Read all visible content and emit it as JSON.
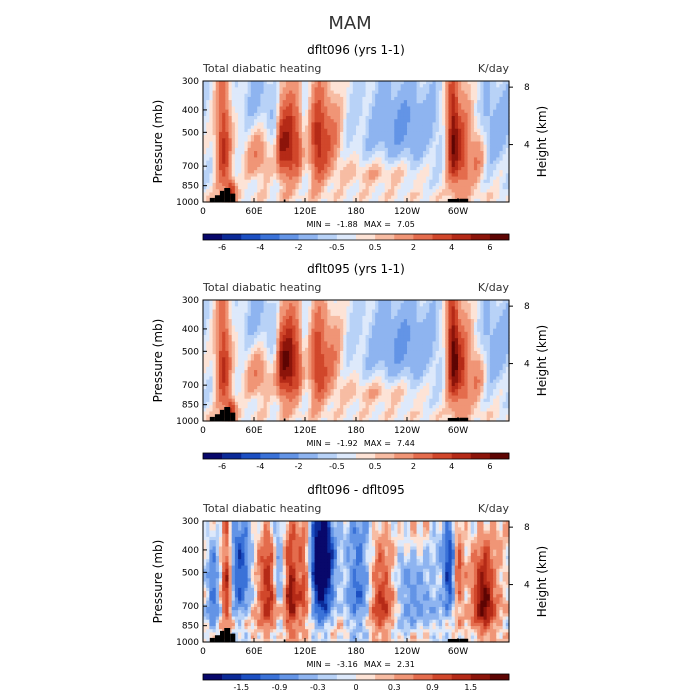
{
  "figure_title": "MAM",
  "chart_data": [
    {
      "type": "heatmap",
      "title": "dflt096 (yrs 1-1)",
      "left_label": "Total diabatic heating",
      "units": "K/day",
      "ylabel": "Pressure (mb)",
      "ylabel_right": "Height (km)",
      "x_ticks": [
        "0",
        "60E",
        "120E",
        "180",
        "120W",
        "60W"
      ],
      "x_tick_values": [
        0,
        60,
        120,
        180,
        240,
        300
      ],
      "xlim": [
        0,
        360
      ],
      "y_ticks": [
        "300",
        "400",
        "500",
        "700",
        "850",
        "1000"
      ],
      "y_tick_values": [
        300,
        400,
        500,
        700,
        850,
        1000
      ],
      "ylim": [
        300,
        1000
      ],
      "right_ticks": [
        "8",
        "4"
      ],
      "right_tick_values": [
        8,
        4
      ],
      "min_label": "MIN =",
      "min_value": "-1.88",
      "max_label": "MAX =",
      "max_value": "7.05",
      "colorbar_labels": [
        "-6",
        "-4",
        "-2",
        "-0.5",
        "0.5",
        "2",
        "4",
        "6"
      ],
      "colorbar_levels": [
        -7,
        -6,
        -5,
        -4,
        -3,
        -2,
        -1,
        -0.5,
        0,
        0.5,
        1,
        2,
        3,
        4,
        5,
        6,
        7
      ],
      "field": "heating",
      "extent": 6.5
    },
    {
      "type": "heatmap",
      "title": "dflt095 (yrs 1-1)",
      "left_label": "Total diabatic heating",
      "units": "K/day",
      "ylabel": "Pressure (mb)",
      "ylabel_right": "Height (km)",
      "x_ticks": [
        "0",
        "60E",
        "120E",
        "180",
        "120W",
        "60W"
      ],
      "x_tick_values": [
        0,
        60,
        120,
        180,
        240,
        300
      ],
      "xlim": [
        0,
        360
      ],
      "y_ticks": [
        "300",
        "400",
        "500",
        "700",
        "850",
        "1000"
      ],
      "y_tick_values": [
        300,
        400,
        500,
        700,
        850,
        1000
      ],
      "ylim": [
        300,
        1000
      ],
      "right_ticks": [
        "8",
        "4"
      ],
      "right_tick_values": [
        8,
        4
      ],
      "min_label": "MIN =",
      "min_value": "-1.92",
      "max_label": "MAX =",
      "max_value": "7.44",
      "colorbar_labels": [
        "-6",
        "-4",
        "-2",
        "-0.5",
        "0.5",
        "2",
        "4",
        "6"
      ],
      "colorbar_levels": [
        -7,
        -6,
        -5,
        -4,
        -3,
        -2,
        -1,
        -0.5,
        0,
        0.5,
        1,
        2,
        3,
        4,
        5,
        6,
        7
      ],
      "field": "heating2",
      "extent": 6.5
    },
    {
      "type": "heatmap",
      "title": "dflt096 - dflt095",
      "left_label": "Total diabatic heating",
      "units": "K/day",
      "ylabel": "Pressure (mb)",
      "ylabel_right": "Height (km)",
      "x_ticks": [
        "0",
        "60E",
        "120E",
        "180",
        "120W",
        "60W"
      ],
      "x_tick_values": [
        0,
        60,
        120,
        180,
        240,
        300
      ],
      "xlim": [
        0,
        360
      ],
      "y_ticks": [
        "300",
        "400",
        "500",
        "700",
        "850",
        "1000"
      ],
      "y_tick_values": [
        300,
        400,
        500,
        700,
        850,
        1000
      ],
      "ylim": [
        300,
        1000
      ],
      "right_ticks": [
        "8",
        "4"
      ],
      "right_tick_values": [
        8,
        4
      ],
      "min_label": "MIN =",
      "min_value": "-3.16",
      "max_label": "MAX =",
      "max_value": "2.31",
      "colorbar_labels": [
        "-1.5",
        "-0.9",
        "-0.3",
        "0",
        "0.3",
        "0.9",
        "1.5"
      ],
      "colorbar_levels": [
        -2.1,
        -1.8,
        -1.5,
        -1.2,
        -0.9,
        -0.6,
        -0.3,
        -0.15,
        0,
        0.15,
        0.3,
        0.6,
        0.9,
        1.2,
        1.5,
        1.8,
        2.1
      ],
      "field": "difference",
      "extent": 2.1
    }
  ],
  "palette": [
    "#08086b",
    "#0b2a98",
    "#1c4fc2",
    "#3a72d8",
    "#6394e6",
    "#8eb4f0",
    "#b8d2f7",
    "#dde9fb",
    "#fde3d6",
    "#f7bca3",
    "#f09576",
    "#e46c4d",
    "#d1472b",
    "#b52a17",
    "#8c140a",
    "#5e0503"
  ],
  "topography": "#000000"
}
